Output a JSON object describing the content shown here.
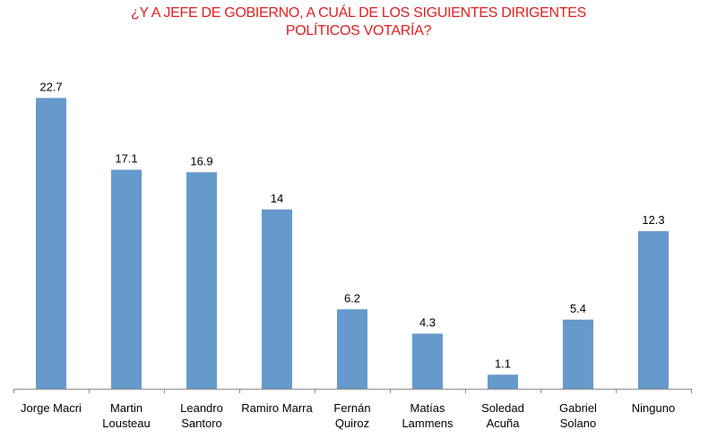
{
  "chart_data": {
    "type": "bar",
    "title_lines": [
      "¿Y A JEFE DE GOBIERNO, A CUÁL DE LOS SIGUIENTES DIRIGENTES",
      "POLÍTICOS VOTARÍA?"
    ],
    "categories": [
      [
        "Jorge Macri"
      ],
      [
        "Martin",
        "Lousteau"
      ],
      [
        "Leandro",
        "Santoro"
      ],
      [
        "Ramiro Marra"
      ],
      [
        "Fernán",
        "Quiroz"
      ],
      [
        "Matías",
        "Lammens"
      ],
      [
        "Soledad",
        "Acuña"
      ],
      [
        "Gabriel",
        "Solano"
      ],
      [
        "Ninguno"
      ]
    ],
    "values": [
      22.7,
      17.1,
      16.9,
      14,
      6.2,
      4.3,
      1.1,
      5.4,
      12.3
    ],
    "labels": [
      "22.7",
      "17.1",
      "16.9",
      "14",
      "6.2",
      "4.3",
      "1.1",
      "5.4",
      "12.3"
    ],
    "ylim": [
      0,
      25
    ],
    "grid": false,
    "legend": "none",
    "xlabel": "",
    "ylabel": ""
  },
  "colors": {
    "title": "#e02020",
    "bar": "#6699cc",
    "axis": "#8c8c8c",
    "text": "#000000"
  }
}
